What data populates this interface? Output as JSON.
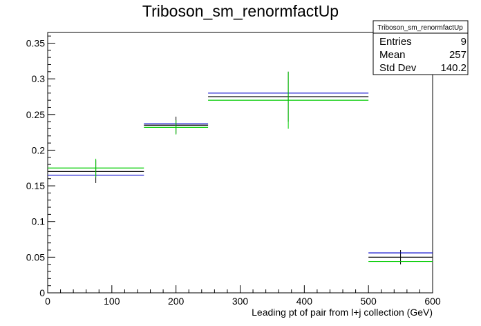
{
  "chart_data": {
    "type": "scatter",
    "title": "Triboson_sm_renormfactUp",
    "xlabel": "Leading pt of pair from l+j collection (GeV)",
    "ylabel": "",
    "xlim": [
      0,
      600
    ],
    "ylim": [
      0,
      0.365
    ],
    "x_ticks": [
      0,
      100,
      200,
      300,
      400,
      500,
      600
    ],
    "y_ticks": [
      0,
      0.05,
      0.1,
      0.15,
      0.2,
      0.25,
      0.3,
      0.35
    ],
    "x_tick_labels": [
      "0",
      "100",
      "200",
      "300",
      "400",
      "500",
      "600"
    ],
    "y_tick_labels": [
      "0",
      "0.05",
      "0.1",
      "0.15",
      "0.2",
      "0.25",
      "0.3",
      "0.35"
    ],
    "grid": false,
    "bins": [
      {
        "low": 0,
        "high": 150
      },
      {
        "low": 150,
        "high": 250
      },
      {
        "low": 250,
        "high": 500
      },
      {
        "low": 500,
        "high": 600
      }
    ],
    "series": [
      {
        "color": "#000000",
        "values": [
          0.17,
          0.235,
          0.275,
          0.05
        ],
        "errors": [
          0.016,
          0.012,
          0.035,
          0.01
        ]
      },
      {
        "color": "#0000cc",
        "values": [
          0.165,
          0.237,
          0.28,
          0.056
        ],
        "errors": [
          0,
          0,
          0,
          0
        ]
      },
      {
        "color": "#00cc00",
        "values": [
          0.175,
          0.232,
          0.27,
          0.044
        ],
        "errors": [
          0.013,
          0.01,
          0.04,
          0.0
        ]
      }
    ],
    "legend_position": "top-right"
  },
  "stats_box": {
    "title": "Triboson_sm_renormfactUp",
    "rows": [
      {
        "label": "Entries",
        "value": "9"
      },
      {
        "label": "Mean",
        "value": "257"
      },
      {
        "label": "Std Dev",
        "value": "140.2"
      }
    ]
  }
}
